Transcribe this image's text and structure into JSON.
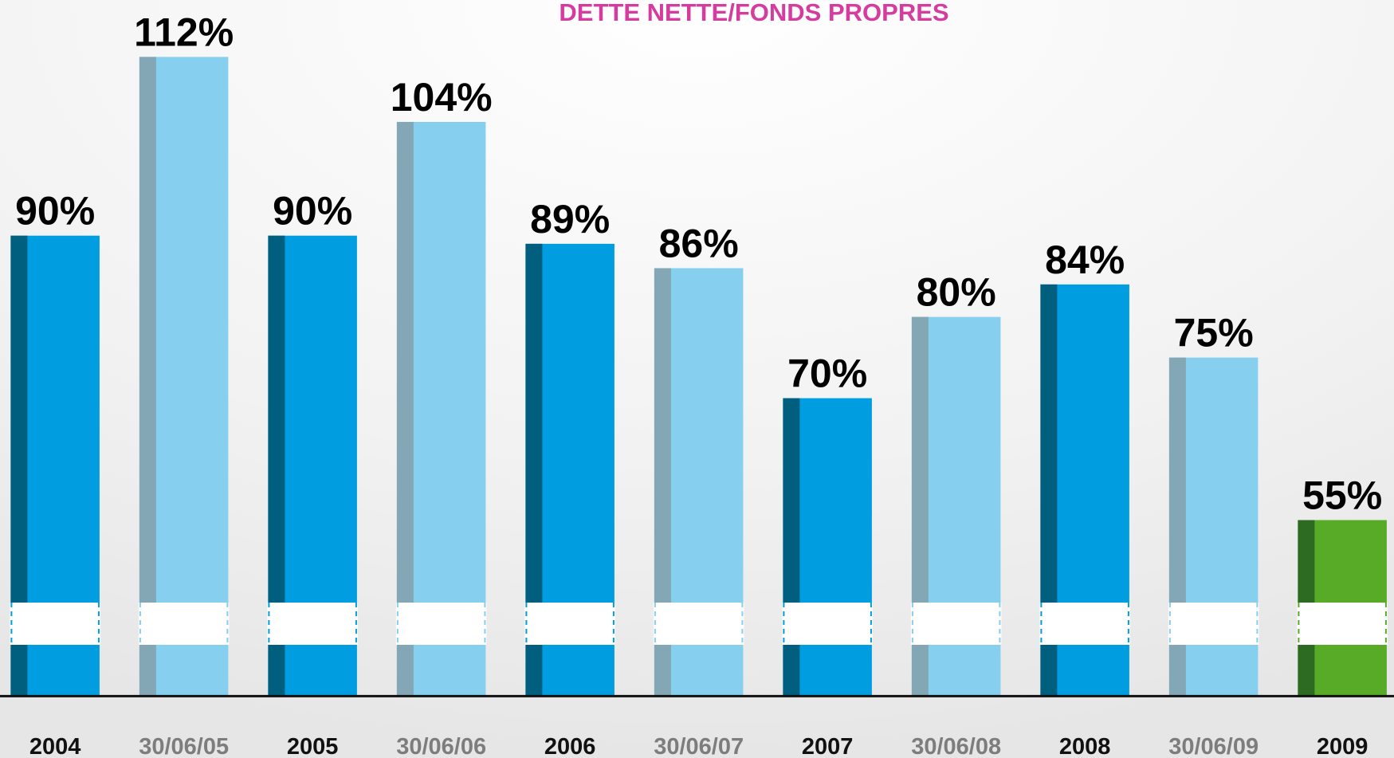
{
  "chart_data": {
    "type": "bar",
    "title": "DETTE NETTE/FONDS PROPRES",
    "categories": [
      "2004",
      "30/06/05",
      "2005",
      "30/06/06",
      "2006",
      "30/06/07",
      "2007",
      "30/06/08",
      "2008",
      "30/06/09",
      "2009"
    ],
    "values": [
      90,
      112,
      90,
      104,
      89,
      86,
      70,
      80,
      84,
      75,
      55
    ],
    "value_labels": [
      "90%",
      "112%",
      "90%",
      "104%",
      "89%",
      "86%",
      "70%",
      "80%",
      "84%",
      "75%",
      "55%"
    ],
    "colors": [
      "#009ee0",
      "#87cfef",
      "#009ee0",
      "#87cfef",
      "#009ee0",
      "#87cfef",
      "#009ee0",
      "#87cfef",
      "#009ee0",
      "#87cfef",
      "#57ab27"
    ],
    "stripe_colors": [
      "#005f7f",
      "#84a7b5",
      "#005f7f",
      "#84a7b5",
      "#005f7f",
      "#84a7b5",
      "#005f7f",
      "#84a7b5",
      "#005f7f",
      "#84a7b5",
      "#2d6a22"
    ],
    "label_colors": [
      "#111111",
      "#7d7d7d",
      "#111111",
      "#7d7d7d",
      "#111111",
      "#7d7d7d",
      "#111111",
      "#7d7d7d",
      "#111111",
      "#7d7d7d",
      "#111111"
    ],
    "title_color": "#d63ca0"
  }
}
